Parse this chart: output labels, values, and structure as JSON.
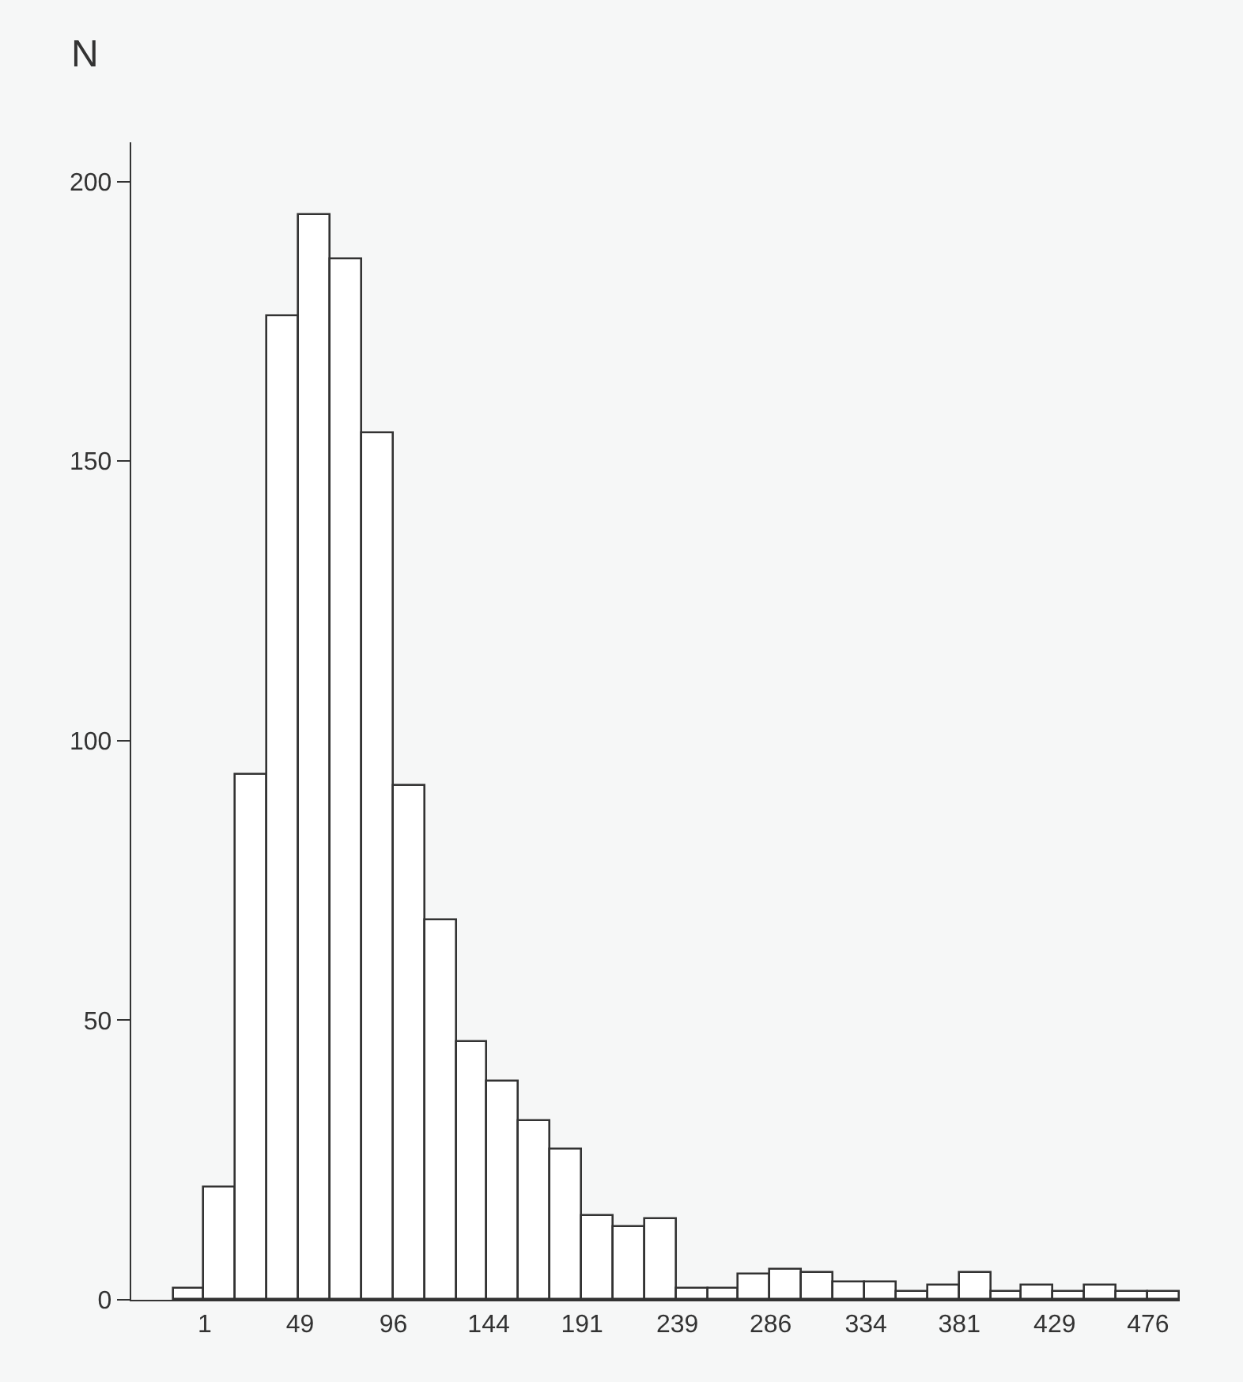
{
  "chart_data": {
    "type": "histogram",
    "ylabel": "N",
    "bins": [
      -14.83,
      1,
      16.83,
      32.67,
      48.5,
      64.33,
      80.17,
      96,
      111.83,
      127.67,
      143.5,
      159.33,
      175.17,
      191,
      206.83,
      222.67,
      238.5,
      254.33,
      270.17,
      286,
      301.83,
      317.67,
      333.5,
      349.33,
      365.17,
      381,
      396.83,
      412.67,
      428.5,
      444.33,
      460.17,
      476,
      491.83
    ],
    "values": [
      2,
      20,
      94,
      176,
      194,
      186,
      155,
      92,
      68,
      46,
      39,
      32,
      27,
      15,
      13,
      14.5,
      2,
      2,
      4.5,
      5.5,
      4.7,
      3.2,
      3.2,
      1.5,
      2.5,
      4.9,
      1.5,
      2.5,
      1.3,
      2.6,
      1.5,
      1.5
    ],
    "color": "#ffffff",
    "xlim": [
      -36,
      492
    ],
    "xticks": [
      1,
      49,
      96,
      144,
      191,
      239,
      286,
      334,
      381,
      429,
      476
    ],
    "ylim": [
      0,
      207
    ],
    "yticks": [
      0,
      50,
      100,
      150,
      200
    ]
  }
}
